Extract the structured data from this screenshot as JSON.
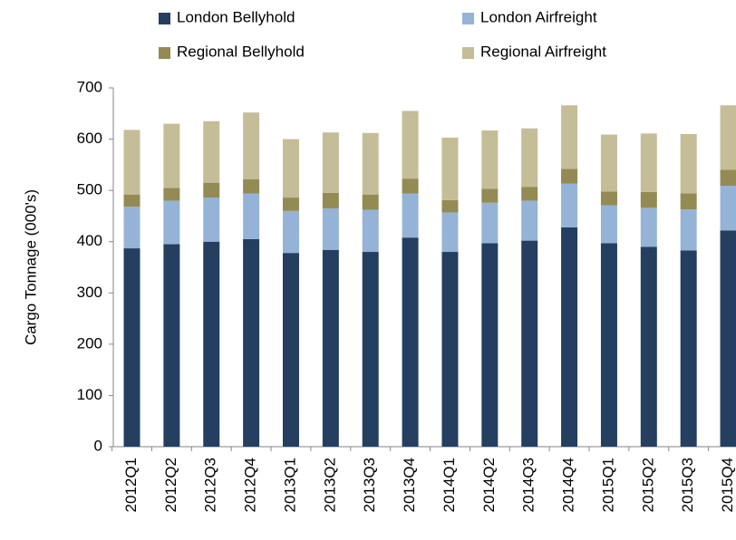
{
  "chart_data": {
    "type": "stacked_bar",
    "y_axis_label": "Cargo Tonnage (000's)",
    "categories": [
      "2012Q1",
      "2012Q2",
      "2012Q3",
      "2012Q4",
      "2013Q1",
      "2013Q2",
      "2013Q3",
      "2013Q4",
      "2014Q1",
      "2014Q2",
      "2014Q3",
      "2014Q4",
      "2015Q1",
      "2015Q2",
      "2015Q3",
      "2015Q4"
    ],
    "series": [
      {
        "name": "London Bellyhold",
        "color": "#243f60",
        "values": [
          387,
          395,
          400,
          405,
          378,
          384,
          380,
          408,
          380,
          397,
          402,
          428,
          397,
          390,
          383,
          422
        ]
      },
      {
        "name": "London Airfreight",
        "color": "#95b3d7",
        "values": [
          81,
          85,
          86,
          89,
          82,
          81,
          82,
          86,
          77,
          79,
          78,
          85,
          74,
          76,
          80,
          87
        ]
      },
      {
        "name": "Regional Bellyhold",
        "color": "#948a54",
        "values": [
          24,
          25,
          29,
          28,
          26,
          30,
          30,
          29,
          24,
          27,
          27,
          29,
          27,
          31,
          31,
          31
        ]
      },
      {
        "name": "Regional Airfreight",
        "color": "#c4bd97",
        "values": [
          126,
          125,
          120,
          130,
          114,
          118,
          120,
          132,
          122,
          114,
          114,
          124,
          111,
          114,
          116,
          126
        ]
      }
    ],
    "ylim": [
      0,
      700
    ],
    "yticks": [
      0,
      100,
      200,
      300,
      400,
      500,
      600,
      700
    ],
    "grid": false
  }
}
